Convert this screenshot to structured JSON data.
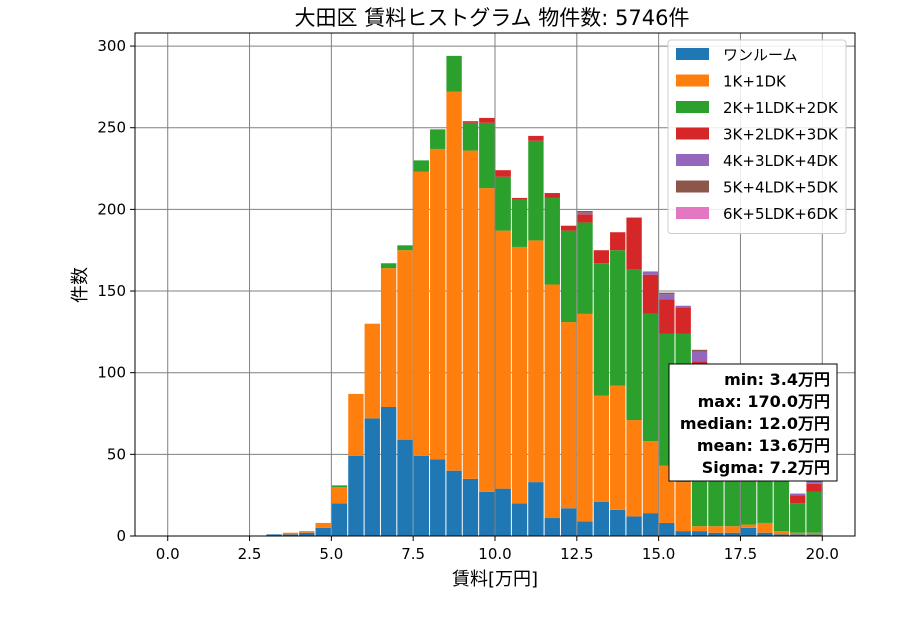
{
  "chart_data": {
    "type": "bar",
    "stacked": true,
    "title": "大田区 賃料ヒストグラム  物件数: 5746件",
    "xlabel": "賃料[万円]",
    "ylabel": "件数",
    "xlim": [
      -1,
      21
    ],
    "ylim": [
      0,
      308
    ],
    "x_ticks": [
      0,
      2.5,
      5,
      7.5,
      10,
      12.5,
      15,
      17.5,
      20
    ],
    "x_tick_labels": [
      "0.0",
      "2.5",
      "5.0",
      "7.5",
      "10.0",
      "12.5",
      "15.0",
      "17.5",
      "20.0"
    ],
    "y_ticks": [
      0,
      50,
      100,
      150,
      200,
      250,
      300
    ],
    "y_tick_labels": [
      "0",
      "50",
      "100",
      "150",
      "200",
      "250",
      "300"
    ],
    "grid": true,
    "legend_position": "top-right",
    "bin_width": 0.5,
    "bins": [
      3.0,
      3.5,
      4.0,
      4.5,
      5.0,
      5.5,
      6.0,
      6.5,
      7.0,
      7.5,
      8.0,
      8.5,
      9.0,
      9.5,
      10.0,
      10.5,
      11.0,
      11.5,
      12.0,
      12.5,
      13.0,
      13.5,
      14.0,
      14.5,
      15.0,
      15.5,
      16.0,
      16.5,
      17.0,
      17.5,
      18.0,
      18.5,
      19.0,
      19.5
    ],
    "series": [
      {
        "name": "ワンルーム",
        "color": "#1f77b4",
        "values": [
          1,
          1,
          2,
          5,
          20,
          49,
          72,
          79,
          59,
          49,
          47,
          40,
          35,
          27,
          29,
          20,
          33,
          11,
          17,
          9,
          21,
          16,
          12,
          14,
          8,
          3,
          3,
          2,
          2,
          5,
          2,
          1,
          1,
          1
        ]
      },
      {
        "name": "1K+1DK",
        "color": "#ff7f0e",
        "values": [
          0,
          1,
          1,
          3,
          10,
          38,
          58,
          85,
          116,
          174,
          190,
          232,
          201,
          186,
          158,
          157,
          148,
          143,
          114,
          127,
          65,
          76,
          59,
          44,
          35,
          30,
          3,
          4,
          4,
          2,
          6,
          2,
          1,
          1
        ]
      },
      {
        "name": "2K+1LDK+2DK",
        "color": "#2ca02c",
        "values": [
          0,
          0,
          0,
          0,
          1,
          0,
          0,
          3,
          3,
          7,
          12,
          22,
          17,
          40,
          33,
          29,
          61,
          53,
          56,
          56,
          81,
          83,
          92,
          78,
          81,
          91,
          96,
          85,
          92,
          88,
          70,
          59,
          18,
          25
        ]
      },
      {
        "name": "3K+2LDK+3DK",
        "color": "#d62728",
        "values": [
          0,
          0,
          0,
          0,
          0,
          0,
          0,
          0,
          0,
          0,
          0,
          0,
          1,
          3,
          4,
          1,
          3,
          3,
          3,
          5,
          8,
          11,
          32,
          24,
          21,
          16,
          5,
          6,
          5,
          6,
          7,
          7,
          5,
          5
        ]
      },
      {
        "name": "4K+3LDK+4DK",
        "color": "#9467bd",
        "values": [
          0,
          0,
          0,
          0,
          0,
          0,
          0,
          0,
          0,
          0,
          0,
          0,
          0,
          0,
          0,
          0,
          0,
          0,
          0,
          1,
          0,
          0,
          0,
          2,
          3,
          1,
          6,
          3,
          1,
          0,
          1,
          1,
          1,
          3
        ]
      },
      {
        "name": "5K+4LDK+5DK",
        "color": "#8c564b",
        "values": [
          0,
          0,
          0,
          0,
          0,
          0,
          0,
          0,
          0,
          0,
          0,
          0,
          0,
          0,
          0,
          0,
          0,
          0,
          0,
          1,
          0,
          0,
          0,
          0,
          1,
          0,
          1,
          0,
          0,
          0,
          0,
          0,
          0,
          1
        ]
      },
      {
        "name": "6K+5LDK+6DK",
        "color": "#e377c2",
        "values": [
          0,
          0,
          0,
          0,
          0,
          0,
          0,
          0,
          0,
          0,
          0,
          0,
          0,
          0,
          0,
          0,
          0,
          0,
          0,
          0,
          0,
          0,
          0,
          0,
          0,
          0,
          0,
          0,
          0,
          0,
          0,
          0,
          0,
          1
        ]
      }
    ],
    "stats": {
      "min": "min: 3.4万円",
      "max": "max: 170.0万円",
      "median": "median: 12.0万円",
      "mean": "mean: 13.6万円",
      "sigma": "Sigma: 7.2万円"
    }
  }
}
